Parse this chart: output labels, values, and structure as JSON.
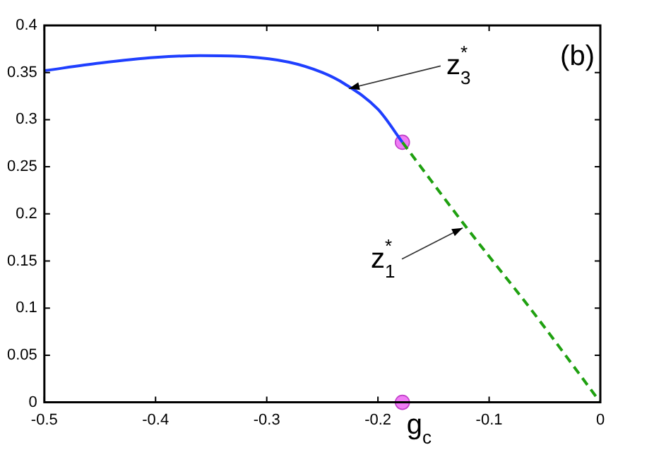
{
  "chart_data": {
    "type": "line",
    "xlim": [
      -0.5,
      0
    ],
    "xticks": [
      -0.5,
      -0.4,
      -0.3,
      -0.2,
      -0.1,
      0
    ],
    "ylim": [
      0,
      0.4
    ],
    "yticks": [
      0,
      0.05,
      0.1,
      0.15,
      0.2,
      0.25,
      0.3,
      0.35,
      0.4
    ],
    "grid": false,
    "legend": false,
    "series": [
      {
        "type": "line",
        "color": "#1f3fff",
        "line_style": "solid",
        "marker": "none",
        "x": [
          -0.5,
          -0.45,
          -0.4,
          -0.36,
          -0.32,
          -0.28,
          -0.25,
          -0.23,
          -0.2,
          -0.178
        ],
        "values": [
          0.352,
          0.36,
          0.366,
          0.368,
          0.367,
          0.361,
          0.35,
          0.338,
          0.311,
          0.276
        ]
      },
      {
        "type": "line",
        "color": "#1fa010",
        "line_style": "dashed",
        "marker": "none",
        "x": [
          -0.178,
          -0.12,
          -0.06,
          0
        ],
        "values": [
          0.276,
          0.185,
          0.095,
          0
        ]
      },
      {
        "type": "scatter",
        "color": "#f07cf5",
        "marker": "circle",
        "x": [
          -0.178,
          -0.178
        ],
        "values": [
          0.276,
          0
        ]
      }
    ],
    "annotations": [
      "(b)",
      {
        "text": "z$_{3}$$^{*}$",
        "x": -0.23,
        "y": 0.333
      },
      {
        "text": "z$_{1}$$^{*}$",
        "x": -0.12,
        "y": 0.185
      },
      {
        "text": "g$_{c}$",
        "x": -0.178,
        "y": 0
      }
    ]
  }
}
